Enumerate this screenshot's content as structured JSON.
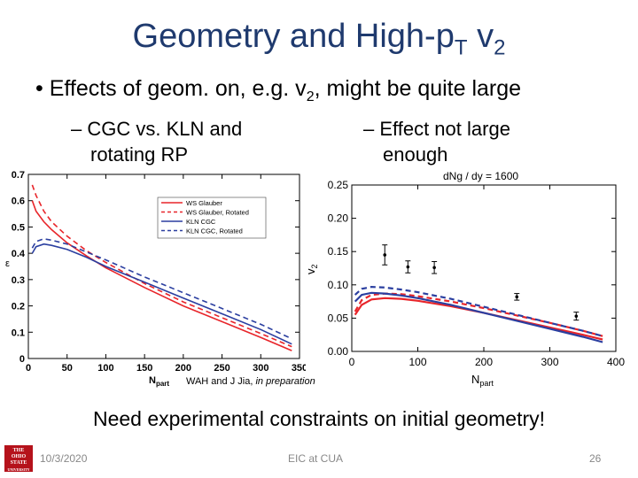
{
  "slide": {
    "title_main": "Geometry and High-p",
    "title_sub": "T",
    "title_tail": " v",
    "title_tail_sub": "2",
    "bullet_pre": "Effects of geom. on, e.g. v",
    "bullet_sub": "2",
    "bullet_post": ", might be quite large",
    "sub_bullet_left_line1": "– CGC vs. KLN and",
    "sub_bullet_left_line2": "rotating RP",
    "sub_bullet_right_line1": "– Effect not large",
    "sub_bullet_right_line2": "enough",
    "credit_pre": "WAH and J Jia, ",
    "credit_italic": "in preparation",
    "conclusion": "Need experimental constraints on initial geometry!"
  },
  "footer": {
    "date": "10/3/2020",
    "center": "EIC at CUA",
    "page": "26",
    "logo_line1": "THE",
    "logo_line2": "OHIO",
    "logo_line3": "STATE",
    "logo_line4": "UNIVERSITY"
  },
  "chart_data": [
    {
      "type": "line",
      "title": "",
      "xlabel": "N",
      "xlabel_sub": "part",
      "ylabel": "ε",
      "xlim": [
        0,
        350
      ],
      "ylim": [
        0,
        0.7
      ],
      "xticks": [
        "0",
        "50",
        "100",
        "150",
        "200",
        "250",
        "300",
        "350"
      ],
      "yticks": [
        "0",
        "0.1",
        "0.2",
        "0.3",
        "0.4",
        "0.5",
        "0.6",
        "0.7"
      ],
      "legend": [
        "WS Glauber",
        "WS Glauber, Rotated",
        "KLN CGC",
        "KLN CGC, Rotated"
      ],
      "colors": [
        "#e8252a",
        "#e8252a",
        "#2b3fa0",
        "#2b3fa0"
      ],
      "series": [
        {
          "name": "WS Glauber",
          "dashed": false,
          "x": [
            5,
            10,
            20,
            30,
            50,
            75,
            100,
            150,
            200,
            250,
            300,
            340
          ],
          "y": [
            0.6,
            0.56,
            0.52,
            0.49,
            0.44,
            0.39,
            0.345,
            0.27,
            0.2,
            0.14,
            0.08,
            0.03
          ]
        },
        {
          "name": "WS Glauber, Rotated",
          "dashed": true,
          "x": [
            5,
            10,
            20,
            30,
            50,
            75,
            100,
            150,
            200,
            250,
            300,
            340
          ],
          "y": [
            0.66,
            0.62,
            0.56,
            0.52,
            0.465,
            0.41,
            0.365,
            0.285,
            0.215,
            0.155,
            0.095,
            0.045
          ]
        },
        {
          "name": "KLN CGC",
          "dashed": false,
          "x": [
            5,
            10,
            20,
            30,
            50,
            75,
            100,
            150,
            200,
            250,
            300,
            340
          ],
          "y": [
            0.4,
            0.425,
            0.435,
            0.43,
            0.415,
            0.385,
            0.35,
            0.29,
            0.23,
            0.17,
            0.11,
            0.055
          ]
        },
        {
          "name": "KLN CGC, Rotated",
          "dashed": true,
          "x": [
            5,
            10,
            20,
            30,
            50,
            75,
            100,
            150,
            200,
            250,
            300,
            340
          ],
          "y": [
            0.42,
            0.445,
            0.455,
            0.45,
            0.435,
            0.405,
            0.375,
            0.31,
            0.25,
            0.19,
            0.13,
            0.075
          ]
        }
      ]
    },
    {
      "type": "line",
      "title": "dN_g / dy = 1600",
      "title_text": "dNg / dy = 1600",
      "xlabel": "N",
      "xlabel_sub": "part",
      "ylabel": "v",
      "ylabel_sub": "2",
      "xlim": [
        0,
        400
      ],
      "ylim": [
        0,
        0.25
      ],
      "xticks": [
        "0",
        "100",
        "200",
        "300",
        "400"
      ],
      "yticks": [
        "0.00",
        "0.05",
        "0.10",
        "0.15",
        "0.20",
        "0.25"
      ],
      "colors": [
        "#e8252a",
        "#e8252a",
        "#2b3fa0",
        "#2b3fa0"
      ],
      "series": [
        {
          "name": "Glauber",
          "dashed": false,
          "x": [
            5,
            15,
            30,
            50,
            75,
            100,
            150,
            200,
            250,
            300,
            350,
            380
          ],
          "y": [
            0.055,
            0.07,
            0.078,
            0.08,
            0.079,
            0.076,
            0.068,
            0.058,
            0.047,
            0.036,
            0.025,
            0.018
          ]
        },
        {
          "name": "Glauber, Rotated",
          "dashed": true,
          "x": [
            5,
            15,
            30,
            50,
            75,
            100,
            150,
            200,
            250,
            300,
            350,
            380
          ],
          "y": [
            0.06,
            0.077,
            0.085,
            0.087,
            0.086,
            0.083,
            0.075,
            0.065,
            0.054,
            0.043,
            0.031,
            0.023
          ]
        },
        {
          "name": "CGC",
          "dashed": false,
          "x": [
            5,
            15,
            30,
            50,
            75,
            100,
            150,
            200,
            250,
            300,
            350,
            380
          ],
          "y": [
            0.075,
            0.085,
            0.088,
            0.087,
            0.084,
            0.08,
            0.07,
            0.058,
            0.046,
            0.034,
            0.022,
            0.014
          ]
        },
        {
          "name": "CGC, Rotated",
          "dashed": true,
          "x": [
            5,
            15,
            30,
            50,
            75,
            100,
            150,
            200,
            250,
            300,
            350,
            380
          ],
          "y": [
            0.085,
            0.094,
            0.097,
            0.096,
            0.093,
            0.089,
            0.079,
            0.067,
            0.055,
            0.043,
            0.031,
            0.023
          ]
        }
      ],
      "data_points": [
        {
          "x": 50,
          "y": 0.145,
          "err": 0.015
        },
        {
          "x": 85,
          "y": 0.127,
          "err": 0.009
        },
        {
          "x": 125,
          "y": 0.126,
          "err": 0.009
        },
        {
          "x": 250,
          "y": 0.082,
          "err": 0.005
        },
        {
          "x": 340,
          "y": 0.053,
          "err": 0.006
        }
      ]
    }
  ]
}
